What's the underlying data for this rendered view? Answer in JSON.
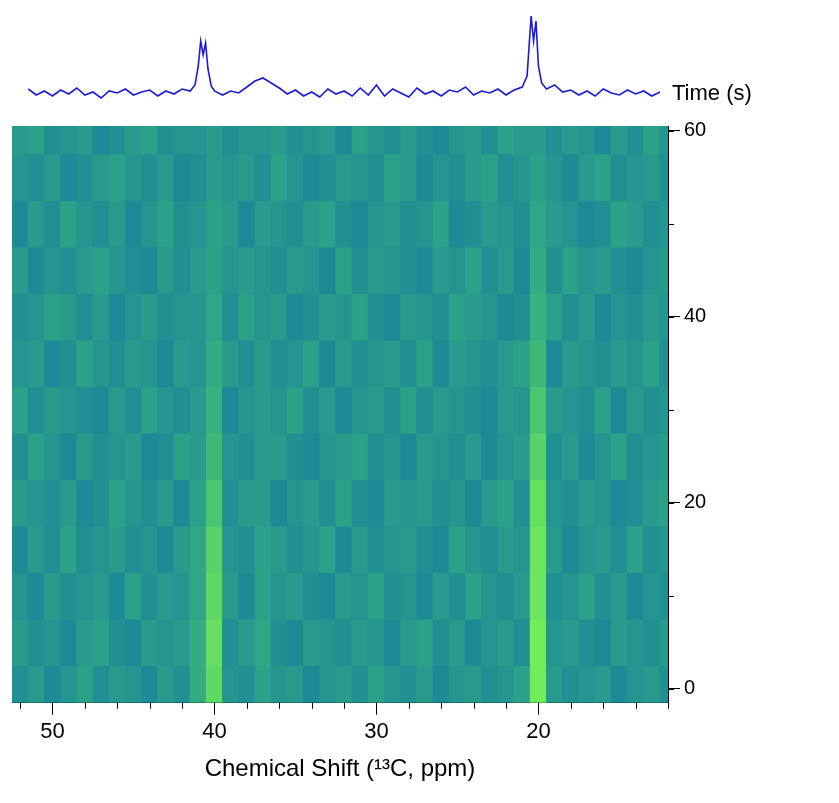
{
  "chart_data": [
    {
      "type": "line",
      "color": "#1a1ad8",
      "grid": false,
      "tick_labels": false,
      "xlim": [
        52.5,
        12
      ],
      "ylim": [
        -0.5,
        9.5
      ],
      "x": [
        51.5,
        51.0,
        50.5,
        50.0,
        49.5,
        49.0,
        48.5,
        48.0,
        47.5,
        47.0,
        46.5,
        46.0,
        45.5,
        45.0,
        44.5,
        44.0,
        43.5,
        43.0,
        42.5,
        42.0,
        41.5,
        41.2,
        41.0,
        40.85,
        40.7,
        40.55,
        40.4,
        40.2,
        40.0,
        39.5,
        39.0,
        38.5,
        38.0,
        37.5,
        37.0,
        36.5,
        36.0,
        35.5,
        35.0,
        34.5,
        34.0,
        33.5,
        33.0,
        32.5,
        32.0,
        31.5,
        31.0,
        30.5,
        30.0,
        29.5,
        29.0,
        28.5,
        28.0,
        27.5,
        27.0,
        26.5,
        26.0,
        25.5,
        25.0,
        24.5,
        24.0,
        23.5,
        23.0,
        22.5,
        22.0,
        21.5,
        21.0,
        20.7,
        20.45,
        20.3,
        20.15,
        20.0,
        19.8,
        19.5,
        19.0,
        18.5,
        18.0,
        17.5,
        17.0,
        16.5,
        16.0,
        15.5,
        15.0,
        14.5,
        14.0,
        13.5,
        13.0,
        12.5
      ],
      "values": [
        1.2,
        0.6,
        1.0,
        0.5,
        1.1,
        0.7,
        1.3,
        0.6,
        0.9,
        0.3,
        1.0,
        0.8,
        1.2,
        0.6,
        0.9,
        1.1,
        0.5,
        1.0,
        0.7,
        1.2,
        1.0,
        1.6,
        3.5,
        6.0,
        4.6,
        5.8,
        3.2,
        1.5,
        1.0,
        0.6,
        1.0,
        0.8,
        1.4,
        2.0,
        2.3,
        1.8,
        1.3,
        0.7,
        1.1,
        0.5,
        0.9,
        0.4,
        1.2,
        0.7,
        1.0,
        0.5,
        1.3,
        0.6,
        1.6,
        0.5,
        1.2,
        0.8,
        0.4,
        1.3,
        0.7,
        1.0,
        0.5,
        1.1,
        0.9,
        1.4,
        0.6,
        1.0,
        0.8,
        1.2,
        0.6,
        1.1,
        1.4,
        2.5,
        8.5,
        6.0,
        8.0,
        3.5,
        1.8,
        1.2,
        1.6,
        0.9,
        1.1,
        0.6,
        1.0,
        0.5,
        1.2,
        0.8,
        0.6,
        1.1,
        0.7,
        1.0,
        0.5,
        0.9
      ]
    },
    {
      "type": "heatmap",
      "x_label": "Chemical Shift (¹³C, ppm)",
      "y_label": "Time (s)",
      "grid": false,
      "xlim": [
        52.5,
        12
      ],
      "ylim": [
        -1.5,
        60.5
      ],
      "xticks": [
        50,
        40,
        30,
        20
      ],
      "yticks": [
        0,
        20,
        40,
        60
      ],
      "x": [
        52,
        51,
        50,
        49,
        48,
        47,
        46,
        45,
        44,
        43,
        42,
        41,
        40,
        39,
        38,
        37,
        36,
        35,
        34,
        33,
        32,
        31,
        30,
        29,
        28,
        27,
        26,
        25,
        24,
        23,
        22,
        21,
        20,
        19,
        18,
        17,
        16,
        15,
        14,
        13,
        12
      ],
      "y": [
        0,
        5,
        10,
        15,
        20,
        25,
        30,
        35,
        40,
        45,
        50,
        55,
        60
      ],
      "cells": [
        [
          0.2,
          0.3,
          0.15,
          0.25,
          0.35,
          0.2,
          0.3,
          0.25,
          0.15,
          0.3,
          0.2,
          0.45,
          0.8,
          0.25,
          0.2,
          0.35,
          0.25,
          0.3,
          0.15,
          0.25,
          0.3,
          0.2,
          0.35,
          0.25,
          0.2,
          0.3,
          0.15,
          0.25,
          0.3,
          0.2,
          0.25,
          0.35,
          0.95,
          0.3,
          0.2,
          0.25,
          0.3,
          0.15,
          0.25,
          0.3,
          0.2
        ],
        [
          0.3,
          0.2,
          0.25,
          0.15,
          0.3,
          0.35,
          0.2,
          0.15,
          0.3,
          0.25,
          0.3,
          0.45,
          0.85,
          0.2,
          0.3,
          0.4,
          0.2,
          0.15,
          0.3,
          0.25,
          0.2,
          0.3,
          0.25,
          0.15,
          0.3,
          0.35,
          0.2,
          0.3,
          0.15,
          0.25,
          0.3,
          0.2,
          0.95,
          0.25,
          0.3,
          0.2,
          0.15,
          0.3,
          0.25,
          0.2,
          0.3
        ],
        [
          0.25,
          0.15,
          0.3,
          0.2,
          0.25,
          0.3,
          0.15,
          0.35,
          0.2,
          0.3,
          0.25,
          0.4,
          0.8,
          0.3,
          0.15,
          0.35,
          0.25,
          0.3,
          0.2,
          0.15,
          0.3,
          0.25,
          0.35,
          0.2,
          0.25,
          0.15,
          0.3,
          0.2,
          0.35,
          0.25,
          0.2,
          0.3,
          0.9,
          0.2,
          0.25,
          0.35,
          0.2,
          0.3,
          0.15,
          0.25,
          0.2
        ],
        [
          0.15,
          0.3,
          0.2,
          0.35,
          0.2,
          0.25,
          0.3,
          0.2,
          0.25,
          0.15,
          0.3,
          0.4,
          0.75,
          0.25,
          0.2,
          0.35,
          0.3,
          0.2,
          0.25,
          0.35,
          0.15,
          0.3,
          0.2,
          0.25,
          0.3,
          0.2,
          0.15,
          0.35,
          0.25,
          0.2,
          0.3,
          0.25,
          0.9,
          0.3,
          0.15,
          0.25,
          0.3,
          0.2,
          0.35,
          0.2,
          0.25
        ],
        [
          0.3,
          0.25,
          0.2,
          0.3,
          0.15,
          0.2,
          0.35,
          0.25,
          0.2,
          0.3,
          0.15,
          0.35,
          0.65,
          0.2,
          0.3,
          0.3,
          0.15,
          0.25,
          0.3,
          0.2,
          0.35,
          0.2,
          0.15,
          0.3,
          0.25,
          0.3,
          0.2,
          0.25,
          0.15,
          0.3,
          0.35,
          0.2,
          0.85,
          0.25,
          0.2,
          0.3,
          0.25,
          0.15,
          0.2,
          0.3,
          0.35
        ],
        [
          0.2,
          0.35,
          0.25,
          0.15,
          0.3,
          0.2,
          0.25,
          0.3,
          0.15,
          0.2,
          0.35,
          0.3,
          0.55,
          0.25,
          0.2,
          0.3,
          0.3,
          0.2,
          0.15,
          0.25,
          0.3,
          0.35,
          0.2,
          0.25,
          0.15,
          0.3,
          0.25,
          0.2,
          0.3,
          0.15,
          0.25,
          0.3,
          0.75,
          0.2,
          0.3,
          0.15,
          0.25,
          0.35,
          0.2,
          0.25,
          0.3
        ],
        [
          0.35,
          0.2,
          0.3,
          0.25,
          0.2,
          0.15,
          0.3,
          0.2,
          0.35,
          0.25,
          0.2,
          0.3,
          0.5,
          0.15,
          0.25,
          0.3,
          0.25,
          0.35,
          0.2,
          0.3,
          0.15,
          0.25,
          0.3,
          0.2,
          0.35,
          0.2,
          0.3,
          0.25,
          0.2,
          0.15,
          0.3,
          0.25,
          0.65,
          0.3,
          0.25,
          0.2,
          0.35,
          0.15,
          0.3,
          0.2,
          0.25
        ],
        [
          0.25,
          0.3,
          0.15,
          0.2,
          0.35,
          0.25,
          0.2,
          0.3,
          0.25,
          0.15,
          0.3,
          0.25,
          0.45,
          0.3,
          0.2,
          0.3,
          0.2,
          0.25,
          0.35,
          0.15,
          0.3,
          0.2,
          0.25,
          0.3,
          0.2,
          0.35,
          0.15,
          0.3,
          0.25,
          0.2,
          0.3,
          0.35,
          0.55,
          0.15,
          0.3,
          0.25,
          0.2,
          0.3,
          0.25,
          0.35,
          0.2
        ],
        [
          0.2,
          0.25,
          0.35,
          0.3,
          0.2,
          0.3,
          0.15,
          0.25,
          0.3,
          0.2,
          0.25,
          0.25,
          0.4,
          0.2,
          0.35,
          0.25,
          0.3,
          0.15,
          0.2,
          0.3,
          0.25,
          0.35,
          0.2,
          0.15,
          0.3,
          0.25,
          0.2,
          0.35,
          0.3,
          0.25,
          0.15,
          0.2,
          0.5,
          0.35,
          0.2,
          0.3,
          0.15,
          0.25,
          0.2,
          0.3,
          0.25
        ],
        [
          0.3,
          0.15,
          0.25,
          0.2,
          0.3,
          0.35,
          0.25,
          0.2,
          0.15,
          0.3,
          0.2,
          0.3,
          0.35,
          0.25,
          0.3,
          0.25,
          0.2,
          0.3,
          0.25,
          0.15,
          0.35,
          0.2,
          0.3,
          0.25,
          0.2,
          0.15,
          0.3,
          0.25,
          0.35,
          0.2,
          0.3,
          0.15,
          0.45,
          0.2,
          0.35,
          0.25,
          0.3,
          0.2,
          0.15,
          0.25,
          0.3
        ],
        [
          0.15,
          0.3,
          0.2,
          0.35,
          0.25,
          0.2,
          0.3,
          0.15,
          0.25,
          0.35,
          0.2,
          0.25,
          0.35,
          0.3,
          0.15,
          0.3,
          0.25,
          0.2,
          0.3,
          0.35,
          0.2,
          0.15,
          0.25,
          0.3,
          0.2,
          0.25,
          0.35,
          0.15,
          0.2,
          0.3,
          0.25,
          0.2,
          0.4,
          0.3,
          0.25,
          0.15,
          0.2,
          0.35,
          0.3,
          0.2,
          0.25
        ],
        [
          0.25,
          0.2,
          0.3,
          0.15,
          0.2,
          0.3,
          0.35,
          0.25,
          0.2,
          0.3,
          0.15,
          0.2,
          0.3,
          0.25,
          0.3,
          0.2,
          0.35,
          0.25,
          0.15,
          0.2,
          0.3,
          0.25,
          0.2,
          0.35,
          0.3,
          0.15,
          0.25,
          0.2,
          0.3,
          0.35,
          0.2,
          0.25,
          0.35,
          0.25,
          0.15,
          0.3,
          0.35,
          0.2,
          0.25,
          0.3,
          0.2
        ],
        [
          0.3,
          0.35,
          0.2,
          0.25,
          0.3,
          0.15,
          0.2,
          0.3,
          0.35,
          0.2,
          0.25,
          0.25,
          0.3,
          0.2,
          0.25,
          0.25,
          0.3,
          0.2,
          0.25,
          0.3,
          0.15,
          0.35,
          0.25,
          0.2,
          0.3,
          0.2,
          0.15,
          0.25,
          0.3,
          0.2,
          0.35,
          0.3,
          0.3,
          0.2,
          0.3,
          0.25,
          0.15,
          0.3,
          0.2,
          0.35,
          0.25
        ]
      ]
    }
  ]
}
